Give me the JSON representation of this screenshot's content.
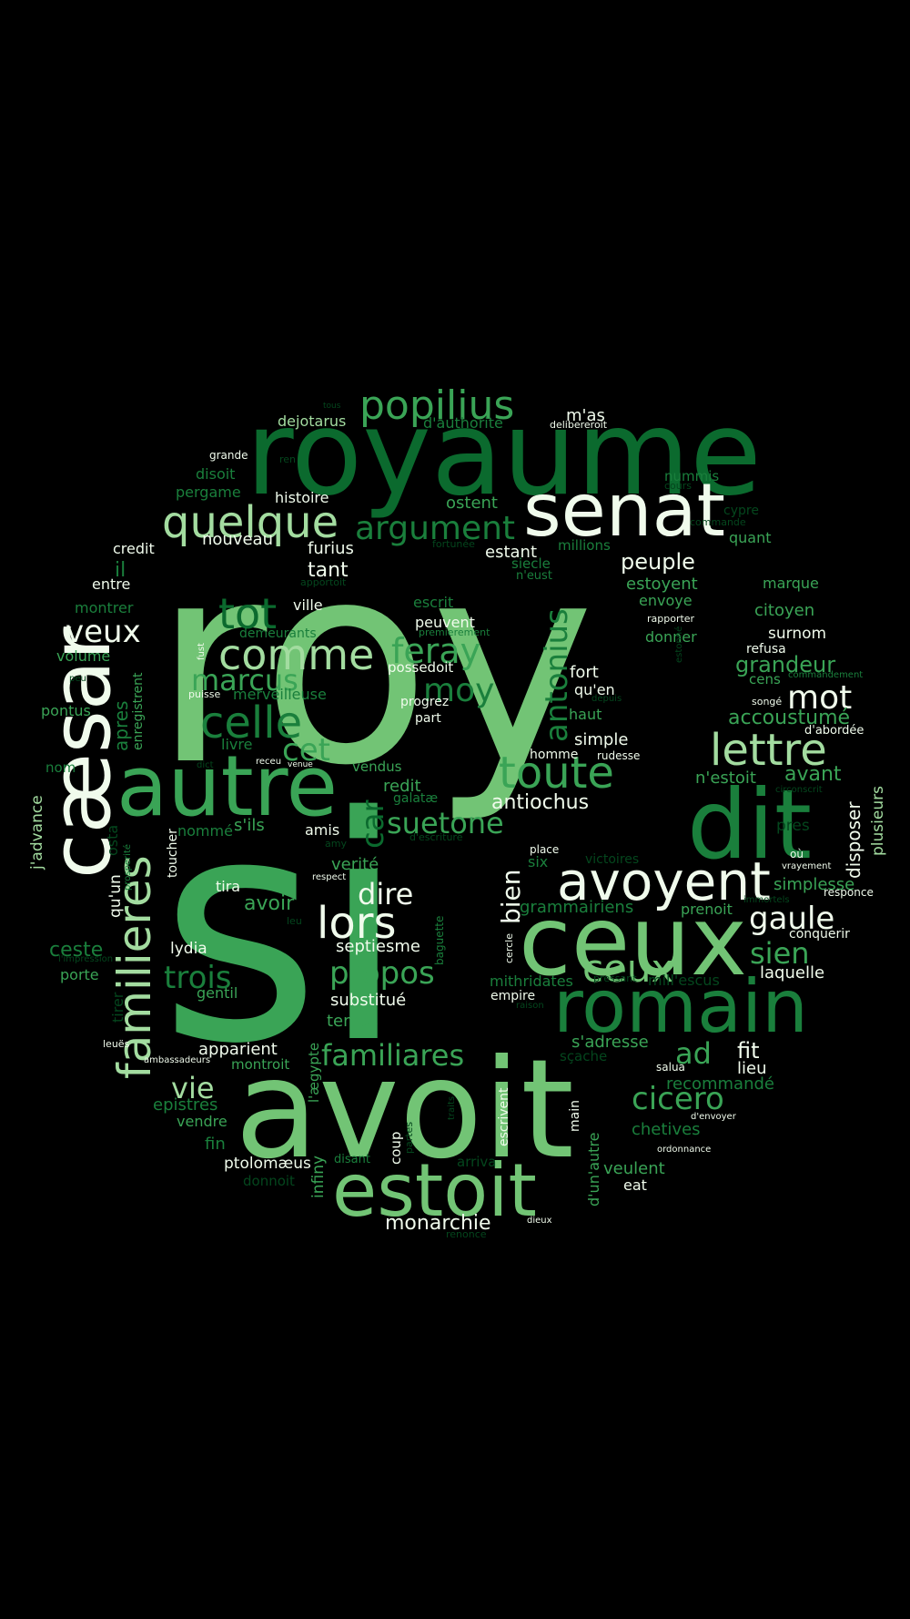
{
  "palette": {
    "background": "#000000",
    "pale": "#f0fbec",
    "light": "#a3dca0",
    "medium": "#72c475",
    "green": "#3aa456",
    "dark": "#1a7f3c",
    "deep": "#0b6a2e",
    "darkest": "#04461d"
  },
  "words": [
    {
      "text": "roy",
      "color": "medium"
    },
    {
      "text": "si",
      "color": "green"
    },
    {
      "text": "avoit",
      "color": "medium"
    },
    {
      "text": "royaume",
      "color": "deep"
    },
    {
      "text": "ceux",
      "color": "medium"
    },
    {
      "text": "dit",
      "color": "dark"
    },
    {
      "text": "autre",
      "color": "green"
    },
    {
      "text": "romain",
      "color": "dark"
    },
    {
      "text": "senat",
      "color": "pale"
    },
    {
      "text": "estoit",
      "color": "medium"
    },
    {
      "text": "cæsar",
      "color": "pale"
    },
    {
      "text": "avoyent",
      "color": "pale"
    },
    {
      "text": "familieres",
      "color": "light"
    },
    {
      "text": "quelque",
      "color": "light"
    },
    {
      "text": "popilius",
      "color": "green"
    },
    {
      "text": "lettre",
      "color": "light"
    },
    {
      "text": "toute",
      "color": "green"
    },
    {
      "text": "celle",
      "color": "dark"
    },
    {
      "text": "comme",
      "color": "light"
    },
    {
      "text": "lors",
      "color": "pale"
    },
    {
      "text": "tot",
      "color": "deep"
    },
    {
      "text": "argument",
      "color": "dark"
    },
    {
      "text": "feray",
      "color": "green"
    },
    {
      "text": "ceux",
      "color": "medium"
    },
    {
      "text": "moy",
      "color": "dark"
    },
    {
      "text": "marcus",
      "color": "green"
    },
    {
      "text": "mot",
      "color": "pale"
    },
    {
      "text": "veux",
      "color": "pale"
    },
    {
      "text": "antonius",
      "color": "dark"
    },
    {
      "text": "suetone",
      "color": "green"
    },
    {
      "text": "gaule",
      "color": "pale"
    },
    {
      "text": "propos",
      "color": "green"
    },
    {
      "text": "trois",
      "color": "dark"
    },
    {
      "text": "familiares",
      "color": "green"
    },
    {
      "text": "cicero",
      "color": "green"
    },
    {
      "text": "sien",
      "color": "green"
    },
    {
      "text": "cet",
      "color": "green"
    },
    {
      "text": "car",
      "color": "deep"
    },
    {
      "text": "dire",
      "color": "pale"
    },
    {
      "text": "bien",
      "color": "pale"
    },
    {
      "text": "vie",
      "color": "light"
    },
    {
      "text": "ad",
      "color": "green"
    },
    {
      "text": "antiochus",
      "color": "pale"
    },
    {
      "text": "peuple",
      "color": "pale"
    },
    {
      "text": "tant",
      "color": "pale"
    },
    {
      "text": "grandeur",
      "color": "green"
    },
    {
      "text": "accoustumé",
      "color": "green"
    },
    {
      "text": "avant",
      "color": "green"
    },
    {
      "text": "fit",
      "color": "pale"
    },
    {
      "text": "avoir",
      "color": "green"
    },
    {
      "text": "ceste",
      "color": "dark"
    },
    {
      "text": "il",
      "color": "dark"
    },
    {
      "text": "apres",
      "color": "dark"
    },
    {
      "text": "m'as",
      "color": "pale"
    },
    {
      "text": "monarchie",
      "color": "pale"
    },
    {
      "text": "estant",
      "color": "pale"
    },
    {
      "text": "ostent",
      "color": "green"
    },
    {
      "text": "estoyent",
      "color": "green"
    },
    {
      "text": "simple",
      "color": "pale"
    },
    {
      "text": "fort",
      "color": "pale"
    },
    {
      "text": "qu'en",
      "color": "pale"
    },
    {
      "text": "haut",
      "color": "green"
    },
    {
      "text": "n'estoit",
      "color": "green"
    },
    {
      "text": "disposer",
      "color": "pale"
    },
    {
      "text": "plusieurs",
      "color": "light"
    },
    {
      "text": "simplesse",
      "color": "green"
    },
    {
      "text": "dejotarus",
      "color": "light"
    },
    {
      "text": "d'authorite",
      "color": "dark"
    },
    {
      "text": "histoire",
      "color": "pale"
    },
    {
      "text": "nouveau",
      "color": "pale"
    },
    {
      "text": "furius",
      "color": "pale"
    },
    {
      "text": "credit",
      "color": "pale"
    },
    {
      "text": "disoit",
      "color": "dark"
    },
    {
      "text": "pergame",
      "color": "dark"
    },
    {
      "text": "entre",
      "color": "pale"
    },
    {
      "text": "montrer",
      "color": "dark"
    },
    {
      "text": "volume",
      "color": "green"
    },
    {
      "text": "pontus",
      "color": "green"
    },
    {
      "text": "enregistrent",
      "color": "green"
    },
    {
      "text": "livre",
      "color": "dark"
    },
    {
      "text": "merveilleuse",
      "color": "dark"
    },
    {
      "text": "ville",
      "color": "pale"
    },
    {
      "text": "demeurants",
      "color": "dark"
    },
    {
      "text": "peuvent",
      "color": "pale"
    },
    {
      "text": "possedoit",
      "color": "pale"
    },
    {
      "text": "progrez",
      "color": "pale"
    },
    {
      "text": "part",
      "color": "pale"
    },
    {
      "text": "escrit",
      "color": "dark"
    },
    {
      "text": "premierement",
      "color": "dark"
    },
    {
      "text": "millions",
      "color": "dark"
    },
    {
      "text": "siecle",
      "color": "dark"
    },
    {
      "text": "n'eust",
      "color": "dark"
    },
    {
      "text": "fortunée",
      "color": "darkest"
    },
    {
      "text": "apportoit",
      "color": "darkest"
    },
    {
      "text": "nummis",
      "color": "dark"
    },
    {
      "text": "cypre",
      "color": "darkest"
    },
    {
      "text": "commande",
      "color": "darkest"
    },
    {
      "text": "quant",
      "color": "green"
    },
    {
      "text": "envoye",
      "color": "green"
    },
    {
      "text": "marque",
      "color": "green"
    },
    {
      "text": "citoyen",
      "color": "green"
    },
    {
      "text": "rapporter",
      "color": "pale"
    },
    {
      "text": "donner",
      "color": "green"
    },
    {
      "text": "surnom",
      "color": "pale"
    },
    {
      "text": "refusa",
      "color": "pale"
    },
    {
      "text": "cens",
      "color": "green"
    },
    {
      "text": "commandement",
      "color": "dark"
    },
    {
      "text": "songé",
      "color": "pale"
    },
    {
      "text": "d'abordée",
      "color": "pale"
    },
    {
      "text": "estonné",
      "color": "darkest"
    },
    {
      "text": "depuis",
      "color": "darkest"
    },
    {
      "text": "homme",
      "color": "pale"
    },
    {
      "text": "rudesse",
      "color": "pale"
    },
    {
      "text": "circonscrit",
      "color": "darkest"
    },
    {
      "text": "pres",
      "color": "darkest"
    },
    {
      "text": "où",
      "color": "pale"
    },
    {
      "text": "vrayement",
      "color": "pale"
    },
    {
      "text": "immortels",
      "color": "darkest"
    },
    {
      "text": "responce",
      "color": "pale"
    },
    {
      "text": "conquerir",
      "color": "pale"
    },
    {
      "text": "laquelle",
      "color": "pale"
    },
    {
      "text": "prenoit",
      "color": "green"
    },
    {
      "text": "victoires",
      "color": "darkest"
    },
    {
      "text": "six",
      "color": "dark"
    },
    {
      "text": "place",
      "color": "pale"
    },
    {
      "text": "grammairiens",
      "color": "dark"
    },
    {
      "text": "mill'escus",
      "color": "darkest"
    },
    {
      "text": "pressant",
      "color": "darkest"
    },
    {
      "text": "mithridates",
      "color": "dark"
    },
    {
      "text": "empire",
      "color": "pale"
    },
    {
      "text": "raison",
      "color": "darkest"
    },
    {
      "text": "s'adresse",
      "color": "green"
    },
    {
      "text": "sçache",
      "color": "darkest"
    },
    {
      "text": "lieu",
      "color": "pale"
    },
    {
      "text": "salua",
      "color": "pale"
    },
    {
      "text": "recommandé",
      "color": "dark"
    },
    {
      "text": "d'envoyer",
      "color": "pale"
    },
    {
      "text": "chetives",
      "color": "dark"
    },
    {
      "text": "ordonnance",
      "color": "pale"
    },
    {
      "text": "veulent",
      "color": "green"
    },
    {
      "text": "eat",
      "color": "pale"
    },
    {
      "text": "d'un'autre",
      "color": "green"
    },
    {
      "text": "main",
      "color": "pale"
    },
    {
      "text": "escrivent",
      "color": "pale"
    },
    {
      "text": "arriva",
      "color": "darkest"
    },
    {
      "text": "partes",
      "color": "darkest"
    },
    {
      "text": "traits",
      "color": "darkest"
    },
    {
      "text": "coup",
      "color": "pale"
    },
    {
      "text": "disant",
      "color": "dark"
    },
    {
      "text": "dieux",
      "color": "pale"
    },
    {
      "text": "renonce",
      "color": "darkest"
    },
    {
      "text": "infiny",
      "color": "green"
    },
    {
      "text": "l'ægypte",
      "color": "green"
    },
    {
      "text": "ptolomæus",
      "color": "pale"
    },
    {
      "text": "donnoit",
      "color": "darkest"
    },
    {
      "text": "fin",
      "color": "dark"
    },
    {
      "text": "vendre",
      "color": "green"
    },
    {
      "text": "epistres",
      "color": "dark"
    },
    {
      "text": "montroit",
      "color": "green"
    },
    {
      "text": "apparient",
      "color": "pale"
    },
    {
      "text": "ambassadeurs",
      "color": "pale"
    },
    {
      "text": "leuës",
      "color": "pale"
    },
    {
      "text": "temps",
      "color": "green"
    },
    {
      "text": "substitué",
      "color": "pale"
    },
    {
      "text": "septiesme",
      "color": "pale"
    },
    {
      "text": "gentil",
      "color": "green"
    },
    {
      "text": "porte",
      "color": "green"
    },
    {
      "text": "lydia",
      "color": "pale"
    },
    {
      "text": "l'impression",
      "color": "darkest"
    },
    {
      "text": "tirer",
      "color": "darkest"
    },
    {
      "text": "leu",
      "color": "darkest"
    },
    {
      "text": "baguette",
      "color": "dark"
    },
    {
      "text": "cercle",
      "color": "pale"
    },
    {
      "text": "tira",
      "color": "pale"
    },
    {
      "text": "verité",
      "color": "green"
    },
    {
      "text": "respect",
      "color": "pale"
    },
    {
      "text": "amy",
      "color": "darkest"
    },
    {
      "text": "d'escriture",
      "color": "darkest"
    },
    {
      "text": "amis",
      "color": "pale"
    },
    {
      "text": "s'ils",
      "color": "green"
    },
    {
      "text": "nommé",
      "color": "dark"
    },
    {
      "text": "toucher",
      "color": "pale"
    },
    {
      "text": "prosperité",
      "color": "dark"
    },
    {
      "text": "qu'un",
      "color": "pale"
    },
    {
      "text": "osta",
      "color": "darkest"
    },
    {
      "text": "j'advance",
      "color": "light"
    },
    {
      "text": "nom",
      "color": "dark"
    },
    {
      "text": "peu",
      "color": "darkest"
    },
    {
      "text": "fust",
      "color": "pale"
    },
    {
      "text": "puisse",
      "color": "pale"
    },
    {
      "text": "dict",
      "color": "darkest"
    },
    {
      "text": "receu",
      "color": "pale"
    },
    {
      "text": "venue",
      "color": "pale"
    },
    {
      "text": "vendus",
      "color": "green"
    },
    {
      "text": "redit",
      "color": "green"
    },
    {
      "text": "galatæ",
      "color": "dark"
    },
    {
      "text": "ren",
      "color": "darkest"
    },
    {
      "text": "tous",
      "color": "darkest"
    },
    {
      "text": "grande",
      "color": "pale"
    },
    {
      "text": "delibereroit",
      "color": "pale"
    },
    {
      "text": "cours",
      "color": "darkest"
    }
  ]
}
